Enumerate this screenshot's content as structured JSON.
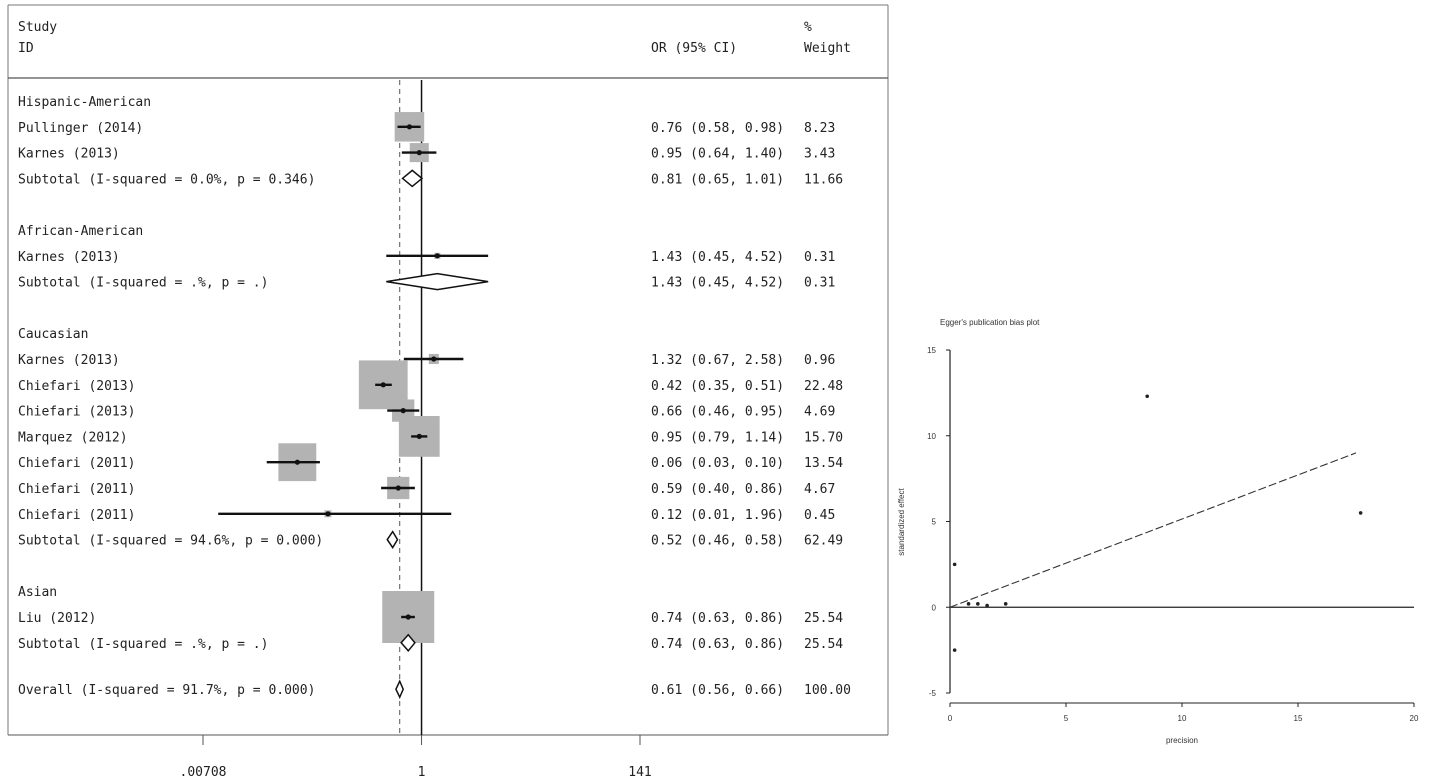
{
  "chart_data": [
    {
      "type": "forest",
      "header": {
        "study_line1": "Study",
        "study_line2": "ID",
        "or_label": "OR (95% CI)",
        "weight_line1": "%",
        "weight_line2": "Weight"
      },
      "groups": [
        {
          "name": "Hispanic-American",
          "studies": [
            {
              "label": "Pullinger (2014)",
              "or": 0.76,
              "lo": 0.58,
              "hi": 0.98,
              "weight": 8.23,
              "text": "0.76 (0.58, 0.98)",
              "weight_text": "8.23"
            },
            {
              "label": "Karnes (2013)",
              "or": 0.95,
              "lo": 0.64,
              "hi": 1.4,
              "weight": 3.43,
              "text": "0.95 (0.64, 1.40)",
              "weight_text": "3.43"
            }
          ],
          "subtotal": {
            "label": "Subtotal  (I-squared = 0.0%, p = 0.346)",
            "or": 0.81,
            "lo": 0.65,
            "hi": 1.01,
            "text": "0.81 (0.65, 1.01)",
            "weight_text": "11.66"
          }
        },
        {
          "name": "African-American",
          "studies": [
            {
              "label": "Karnes (2013)",
              "or": 1.43,
              "lo": 0.45,
              "hi": 4.52,
              "weight": 0.31,
              "text": "1.43 (0.45, 4.52)",
              "weight_text": "0.31"
            }
          ],
          "subtotal": {
            "label": "Subtotal  (I-squared = .%, p = .)",
            "or": 1.43,
            "lo": 0.45,
            "hi": 4.52,
            "text": "1.43 (0.45, 4.52)",
            "weight_text": "0.31"
          }
        },
        {
          "name": "Caucasian",
          "studies": [
            {
              "label": "Karnes (2013)",
              "or": 1.32,
              "lo": 0.67,
              "hi": 2.58,
              "weight": 0.96,
              "text": "1.32 (0.67, 2.58)",
              "weight_text": "0.96"
            },
            {
              "label": "Chiefari (2013)",
              "or": 0.42,
              "lo": 0.35,
              "hi": 0.51,
              "weight": 22.48,
              "text": "0.42 (0.35, 0.51)",
              "weight_text": "22.48"
            },
            {
              "label": "Chiefari (2013)",
              "or": 0.66,
              "lo": 0.46,
              "hi": 0.95,
              "weight": 4.69,
              "text": "0.66 (0.46, 0.95)",
              "weight_text": "4.69"
            },
            {
              "label": "Marquez (2012)",
              "or": 0.95,
              "lo": 0.79,
              "hi": 1.14,
              "weight": 15.7,
              "text": "0.95 (0.79, 1.14)",
              "weight_text": "15.70"
            },
            {
              "label": "Chiefari (2011)",
              "or": 0.06,
              "lo": 0.03,
              "hi": 0.1,
              "weight": 13.54,
              "text": "0.06 (0.03, 0.10)",
              "weight_text": "13.54"
            },
            {
              "label": "Chiefari (2011)",
              "or": 0.59,
              "lo": 0.4,
              "hi": 0.86,
              "weight": 4.67,
              "text": "0.59 (0.40, 0.86)",
              "weight_text": "4.67"
            },
            {
              "label": "Chiefari (2011)",
              "or": 0.12,
              "lo": 0.01,
              "hi": 1.96,
              "weight": 0.45,
              "text": "0.12 (0.01, 1.96)",
              "weight_text": "0.45"
            }
          ],
          "subtotal": {
            "label": "Subtotal  (I-squared = 94.6%, p = 0.000)",
            "or": 0.52,
            "lo": 0.46,
            "hi": 0.58,
            "text": "0.52 (0.46, 0.58)",
            "weight_text": "62.49"
          }
        },
        {
          "name": "Asian",
          "studies": [
            {
              "label": "Liu (2012)",
              "or": 0.74,
              "lo": 0.63,
              "hi": 0.86,
              "weight": 25.54,
              "text": "0.74 (0.63, 0.86)",
              "weight_text": "25.54"
            }
          ],
          "subtotal": {
            "label": "Subtotal  (I-squared = .%, p = .)",
            "or": 0.74,
            "lo": 0.63,
            "hi": 0.86,
            "text": "0.74 (0.63, 0.86)",
            "weight_text": "25.54"
          }
        }
      ],
      "overall": {
        "label": "Overall  (I-squared = 91.7%, p = 0.000)",
        "or": 0.61,
        "lo": 0.56,
        "hi": 0.66,
        "text": "0.61 (0.56, 0.66)",
        "weight_text": "100.00"
      },
      "x_axis": {
        "scale": "log",
        "ticks": [
          {
            "value": 0.00708,
            "label": ".00708"
          },
          {
            "value": 1,
            "label": "1"
          },
          {
            "value": 141,
            "label": "141"
          }
        ]
      },
      "colors": {
        "box": "#b3b3b3",
        "line": "#111111"
      }
    },
    {
      "type": "scatter",
      "title": "Egger's publication bias plot",
      "xlabel": "precision",
      "ylabel": "standardized effect",
      "xlim": [
        0,
        20
      ],
      "ylim": [
        -5,
        15
      ],
      "xticks": [
        0,
        5,
        10,
        15,
        20
      ],
      "yticks": [
        -5,
        0,
        5,
        10,
        15
      ],
      "points": [
        {
          "x": 0.2,
          "y": 2.5
        },
        {
          "x": 0.2,
          "y": -2.5
        },
        {
          "x": 0.8,
          "y": 0.2
        },
        {
          "x": 1.2,
          "y": 0.2
        },
        {
          "x": 1.6,
          "y": 0.1
        },
        {
          "x": 2.4,
          "y": 0.2
        },
        {
          "x": 8.5,
          "y": 12.3
        },
        {
          "x": 17.7,
          "y": 5.5
        }
      ],
      "regression": {
        "x": [
          0,
          17.5
        ],
        "y": [
          0,
          9
        ]
      },
      "reference_line_y": 0
    }
  ]
}
